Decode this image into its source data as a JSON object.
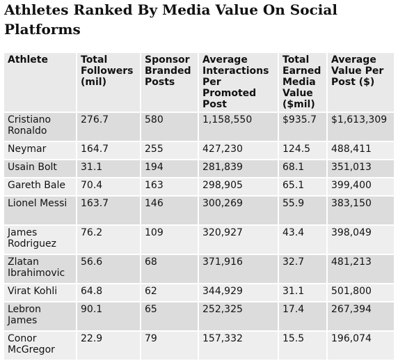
{
  "title": "Athletes Ranked By Media Value On Social Platforms",
  "table": {
    "headers": [
      "Athlete",
      "Total Followers (mil)",
      "Sponsor Branded Posts",
      "Average Interactions Per Promoted Post",
      "Total Earned Media Value ($mil)",
      "Average Value Per Post ($)"
    ],
    "rows": [
      [
        "Cristiano Ronaldo",
        "276.7",
        "580",
        "1,158,550",
        "$935.7",
        "$1,613,309"
      ],
      [
        "Neymar",
        "164.7",
        "255",
        "427,230",
        "124.5",
        "488,411"
      ],
      [
        "Usain Bolt",
        "31.1",
        "194",
        "281,839",
        "68.1",
        "351,013"
      ],
      [
        "Gareth Bale",
        "70.4",
        "163",
        "298,905",
        "65.1",
        "399,400"
      ],
      [
        "Lionel Messi",
        "163.7",
        "146",
        "300,269",
        "55.9",
        "383,150"
      ],
      [
        "James Rodriguez",
        "76.2",
        "109",
        "320,927",
        "43.4",
        "398,049"
      ],
      [
        "Zlatan Ibrahimovic",
        "56.6",
        "68",
        "371,916",
        "32.7",
        "481,213"
      ],
      [
        "Virat Kohli",
        "64.8",
        "62",
        "344,929",
        "31.1",
        "501,800"
      ],
      [
        "Lebron James",
        "90.1",
        "65",
        "252,325",
        "17.4",
        "267,394"
      ],
      [
        "Conor McGregor",
        "22.9",
        "79",
        "157,332",
        "15.5",
        "196,074"
      ]
    ]
  }
}
